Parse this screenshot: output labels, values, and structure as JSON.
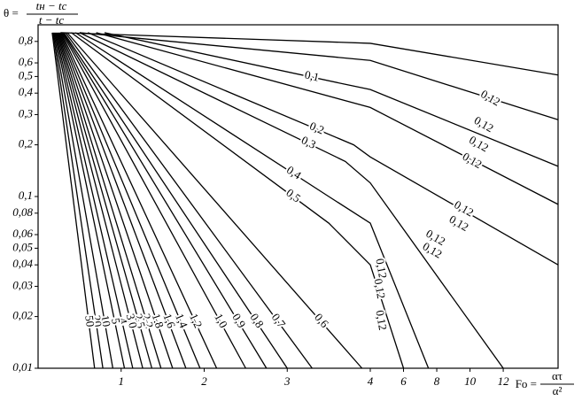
{
  "chart_data": {
    "type": "line",
    "ylabel": {
      "lhs": "θ =",
      "numerator": "tн − tс",
      "denominator": "t − tс"
    },
    "xlabel": {
      "lhs": "Fo =",
      "numerator": "ατ",
      "denominator": "α²"
    },
    "ylog": true,
    "ylim": [
      0.01,
      1
    ],
    "yticks": [
      {
        "value": 0.8,
        "label": "0,8"
      },
      {
        "value": 0.6,
        "label": "0,6"
      },
      {
        "value": 0.5,
        "label": "0,5"
      },
      {
        "value": 0.4,
        "label": "0,4"
      },
      {
        "value": 0.3,
        "label": "0,3"
      },
      {
        "value": 0.2,
        "label": "0,2"
      },
      {
        "value": 0.1,
        "label": "0,1"
      },
      {
        "value": 0.08,
        "label": "0,08"
      },
      {
        "value": 0.06,
        "label": "0,06"
      },
      {
        "value": 0.05,
        "label": "0,05"
      },
      {
        "value": 0.04,
        "label": "0,04"
      },
      {
        "value": 0.03,
        "label": "0,03"
      },
      {
        "value": 0.02,
        "label": "0,02"
      },
      {
        "value": 0.01,
        "label": "0,01"
      }
    ],
    "xlim": [
      0,
      15.3
    ],
    "xbreak": 4,
    "xticks": [
      1,
      2,
      3,
      4,
      6,
      8,
      10,
      12
    ],
    "color": "#000000",
    "series": [
      {
        "x": [
          0.27,
          4,
          15.3
        ],
        "values": [
          0.9,
          0.78,
          0.51
        ]
      },
      {
        "x": [
          0.5,
          4,
          15.3
        ],
        "values": [
          0.9,
          0.62,
          0.28
        ]
      },
      {
        "name": "0,1",
        "x": [
          0.8,
          3.7,
          4,
          15.3
        ],
        "values": [
          0.9,
          0.45,
          0.42,
          0.15
        ]
      },
      {
        "x": [
          0.7,
          4,
          15.3
        ],
        "values": [
          0.9,
          0.33,
          0.09
        ]
      },
      {
        "name": "0,2",
        "x": [
          0.6,
          3.8,
          4,
          15.3
        ],
        "values": [
          0.9,
          0.2,
          0.17,
          0.04
        ]
      },
      {
        "name": "0,3",
        "x": [
          0.5,
          3.7,
          4,
          12
        ],
        "values": [
          0.9,
          0.16,
          0.12,
          0.01
        ]
      },
      {
        "name": "0,4",
        "x": [
          0.45,
          3.5,
          4,
          7.5
        ],
        "values": [
          0.9,
          0.1,
          0.07,
          0.01
        ]
      },
      {
        "name": "0,5",
        "x": [
          0.4,
          3.5,
          4,
          6
        ],
        "values": [
          0.9,
          0.07,
          0.04,
          0.01
        ]
      },
      {
        "name": "0,6",
        "x": [
          0.35,
          3.9
        ],
        "values": [
          0.9,
          0.01
        ]
      },
      {
        "name": "0,7",
        "x": [
          0.33,
          3.3
        ],
        "values": [
          0.9,
          0.01
        ]
      },
      {
        "name": "0,8",
        "x": [
          0.31,
          3.0
        ],
        "values": [
          0.9,
          0.01
        ]
      },
      {
        "name": "0,9",
        "x": [
          0.3,
          2.75
        ],
        "values": [
          0.9,
          0.01
        ]
      },
      {
        "name": "1,0",
        "x": [
          0.29,
          2.5
        ],
        "values": [
          0.9,
          0.01
        ]
      },
      {
        "name": "1,2",
        "x": [
          0.28,
          2.15
        ],
        "values": [
          0.9,
          0.01
        ]
      },
      {
        "name": "1,4",
        "x": [
          0.27,
          1.95
        ],
        "values": [
          0.9,
          0.01
        ]
      },
      {
        "name": "1,6",
        "x": [
          0.26,
          1.78
        ],
        "values": [
          0.9,
          0.01
        ]
      },
      {
        "name": "1,8",
        "x": [
          0.25,
          1.62
        ],
        "values": [
          0.9,
          0.01
        ]
      },
      {
        "name": "2,2",
        "x": [
          0.24,
          1.48
        ],
        "values": [
          0.9,
          0.01
        ]
      },
      {
        "name": "2,5",
        "x": [
          0.23,
          1.37
        ],
        "values": [
          0.9,
          0.01
        ]
      },
      {
        "name": "3,0",
        "x": [
          0.22,
          1.26
        ],
        "values": [
          0.9,
          0.01
        ]
      },
      {
        "name": "4",
        "x": [
          0.21,
          1.14
        ],
        "values": [
          0.9,
          0.01
        ]
      },
      {
        "name": "5",
        "x": [
          0.2,
          1.04
        ],
        "values": [
          0.9,
          0.01
        ]
      },
      {
        "name": "10",
        "x": [
          0.19,
          0.9
        ],
        "values": [
          0.9,
          0.01
        ]
      },
      {
        "name": "20",
        "x": [
          0.18,
          0.78
        ],
        "values": [
          0.9,
          0.01
        ]
      },
      {
        "name": "50",
        "x": [
          0.17,
          0.68
        ],
        "values": [
          0.9,
          0.01
        ]
      }
    ],
    "annotations": [
      {
        "text": "0,12",
        "x": 11.2,
        "y": 0.37
      },
      {
        "text": "0,12",
        "x": 10.8,
        "y": 0.26
      },
      {
        "text": "0,12",
        "x": 10.5,
        "y": 0.2
      },
      {
        "text": "0,12",
        "x": 10.1,
        "y": 0.16
      },
      {
        "text": "0,12",
        "x": 9.6,
        "y": 0.084
      },
      {
        "text": "0,12",
        "x": 9.3,
        "y": 0.069
      },
      {
        "text": "0,12",
        "x": 7.9,
        "y": 0.057
      },
      {
        "text": "0,12",
        "x": 7.7,
        "y": 0.048
      },
      {
        "text": "0,12",
        "x": 4.6,
        "y": 0.038
      },
      {
        "text": "0,12",
        "x": 4.5,
        "y": 0.029
      },
      {
        "text": "0,12",
        "x": 4.6,
        "y": 0.019
      }
    ]
  }
}
